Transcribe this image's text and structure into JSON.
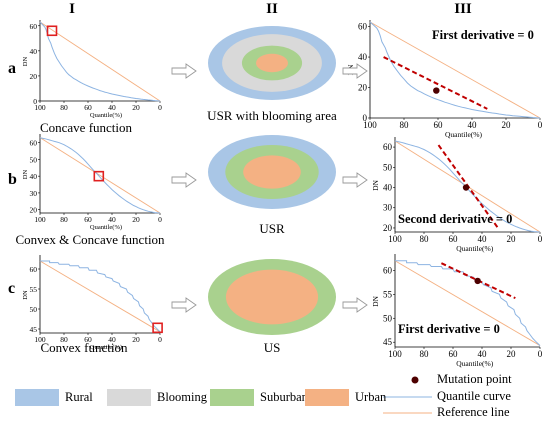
{
  "columns": [
    "I",
    "II",
    "III"
  ],
  "rows": [
    {
      "label": "a",
      "left_caption": "Concave function",
      "middle_caption": "USR with blooming area",
      "annotation": "First derivative = 0",
      "y_ticks": [
        "60",
        "40",
        "20",
        "0"
      ],
      "x_ticks": [
        "100",
        "80",
        "60",
        "40",
        "20",
        "0"
      ],
      "ylim": [
        0,
        63
      ],
      "rings": [
        "rural",
        "blooming",
        "suburban",
        "urban"
      ],
      "quantile_curve": [
        [
          100,
          63
        ],
        [
          98,
          61
        ],
        [
          96,
          59
        ],
        [
          95,
          57
        ],
        [
          94,
          54
        ],
        [
          93,
          50
        ],
        [
          91,
          46
        ],
        [
          90,
          43
        ],
        [
          88,
          38
        ],
        [
          86,
          34
        ],
        [
          84,
          31
        ],
        [
          82,
          28
        ],
        [
          80,
          25.5
        ],
        [
          78,
          23
        ],
        [
          76,
          21
        ],
        [
          74,
          19.5
        ],
        [
          72,
          18
        ],
        [
          70,
          17
        ],
        [
          68,
          15.8
        ],
        [
          66,
          14.7
        ],
        [
          64,
          13.7
        ],
        [
          62,
          12.8
        ],
        [
          60,
          12
        ],
        [
          58,
          11.2
        ],
        [
          56,
          10.4
        ],
        [
          54,
          9.7
        ],
        [
          52,
          9
        ],
        [
          50,
          8.3
        ],
        [
          48,
          7.7
        ],
        [
          46,
          7.1
        ],
        [
          44,
          6.6
        ],
        [
          42,
          6.1
        ],
        [
          40,
          5.6
        ],
        [
          38,
          5.2
        ],
        [
          36,
          4.8
        ],
        [
          34,
          4.4
        ],
        [
          32,
          4
        ],
        [
          30,
          3.6
        ],
        [
          28,
          3.3
        ],
        [
          26,
          3
        ],
        [
          24,
          2.6
        ],
        [
          22,
          2.3
        ],
        [
          20,
          2
        ],
        [
          18,
          1.8
        ],
        [
          16,
          1.5
        ],
        [
          14,
          1.3
        ],
        [
          12,
          1.1
        ],
        [
          10,
          0.9
        ],
        [
          8,
          0.7
        ],
        [
          6,
          0.5
        ],
        [
          4,
          0.35
        ],
        [
          2,
          0.2
        ],
        [
          0,
          0
        ]
      ],
      "reference_line": [
        [
          100,
          63
        ],
        [
          0,
          0
        ]
      ],
      "mutation_point_left": [
        90,
        56
      ],
      "mutation_point_right": [
        61,
        18
      ],
      "tangent": [
        [
          92,
          40
        ],
        [
          31,
          6
        ]
      ]
    },
    {
      "label": "b",
      "left_caption": "Convex & Concave function",
      "middle_caption": "USR",
      "annotation": "Second derivative = 0",
      "y_ticks": [
        "60",
        "50",
        "40",
        "30",
        "20"
      ],
      "x_ticks": [
        "100",
        "80",
        "60",
        "40",
        "20",
        "0"
      ],
      "ylim": [
        18,
        64
      ],
      "rings": [
        "rural",
        "suburban",
        "urban"
      ],
      "quantile_curve": [
        [
          100,
          63
        ],
        [
          98,
          62.7
        ],
        [
          96,
          62.4
        ],
        [
          94,
          62
        ],
        [
          92,
          61.6
        ],
        [
          90,
          61.2
        ],
        [
          88,
          60.8
        ],
        [
          86,
          60.4
        ],
        [
          84,
          60
        ],
        [
          82,
          59.4
        ],
        [
          80,
          58.8
        ],
        [
          78,
          58
        ],
        [
          76,
          57.2
        ],
        [
          74,
          56.3
        ],
        [
          72,
          55.3
        ],
        [
          70,
          54.2
        ],
        [
          68,
          53
        ],
        [
          66,
          51.7
        ],
        [
          64,
          50.3
        ],
        [
          62,
          48.8
        ],
        [
          60,
          47.2
        ],
        [
          58,
          45.6
        ],
        [
          56,
          44
        ],
        [
          54,
          42.4
        ],
        [
          52,
          41
        ],
        [
          50,
          39.4
        ],
        [
          48,
          37.8
        ],
        [
          46,
          36.3
        ],
        [
          44,
          34.8
        ],
        [
          42,
          33.4
        ],
        [
          40,
          32
        ],
        [
          38,
          30.7
        ],
        [
          36,
          29.5
        ],
        [
          34,
          28.3
        ],
        [
          32,
          27.2
        ],
        [
          30,
          26.1
        ],
        [
          28,
          25.1
        ],
        [
          26,
          24.2
        ],
        [
          24,
          23.3
        ],
        [
          22,
          22.5
        ],
        [
          20,
          21.8
        ],
        [
          18,
          21.1
        ],
        [
          16,
          20.5
        ],
        [
          14,
          20
        ],
        [
          12,
          19.5
        ],
        [
          10,
          19.1
        ],
        [
          8,
          18.7
        ],
        [
          6,
          18.4
        ],
        [
          4,
          18.2
        ],
        [
          2,
          18.1
        ],
        [
          0,
          18
        ]
      ],
      "reference_line": [
        [
          100,
          63
        ],
        [
          0,
          18
        ]
      ],
      "mutation_point_left": [
        51,
        40
      ],
      "mutation_point_right": [
        51,
        40
      ],
      "tangent": [
        [
          70,
          61
        ],
        [
          29,
          20
        ]
      ]
    },
    {
      "label": "c",
      "left_caption": "Convex function",
      "middle_caption": "US",
      "annotation": "First derivative = 0",
      "y_ticks": [
        "60",
        "55",
        "50",
        "45"
      ],
      "x_ticks": [
        "100",
        "80",
        "60",
        "40",
        "20",
        "0"
      ],
      "ylim": [
        44,
        63
      ],
      "rings": [
        "suburban",
        "urban"
      ],
      "quantile_curve": [
        [
          100,
          62
        ],
        [
          92,
          62
        ],
        [
          92,
          61.6
        ],
        [
          85,
          61.6
        ],
        [
          84,
          61.2
        ],
        [
          76,
          61.2
        ],
        [
          75,
          60.8
        ],
        [
          68,
          60.8
        ],
        [
          67,
          60.3
        ],
        [
          60,
          60.3
        ],
        [
          59,
          59.7
        ],
        [
          53,
          59.7
        ],
        [
          52,
          59
        ],
        [
          46,
          58.6
        ],
        [
          45,
          58
        ],
        [
          40,
          57.6
        ],
        [
          39,
          57
        ],
        [
          34,
          56.4
        ],
        [
          33,
          55.6
        ],
        [
          28,
          55
        ],
        [
          27,
          54.2
        ],
        [
          23,
          53.4
        ],
        [
          22,
          52.6
        ],
        [
          18,
          51.8
        ],
        [
          17,
          50.8
        ],
        [
          14,
          50
        ],
        [
          13,
          49
        ],
        [
          10,
          48.2
        ],
        [
          9,
          47.4
        ],
        [
          7,
          46.6
        ],
        [
          5,
          45.8
        ],
        [
          3,
          45.2
        ],
        [
          1,
          44.6
        ],
        [
          0,
          44.3
        ]
      ],
      "reference_line": [
        [
          100,
          62
        ],
        [
          0,
          44.3
        ]
      ],
      "mutation_point_left": [
        2,
        45.3
      ],
      "mutation_point_right": [
        43,
        57.8
      ],
      "tangent": [
        [
          68,
          61.5
        ],
        [
          17,
          54.2
        ]
      ]
    }
  ],
  "axis_labels": {
    "y": "DN",
    "x": "Quantile(%)"
  },
  "legend": {
    "areas": [
      {
        "key": "rural",
        "label": "Rural",
        "color": "#a9c6e6"
      },
      {
        "key": "blooming",
        "label": "Blooming area",
        "color": "#d9d9d9"
      },
      {
        "key": "suburban",
        "label": "Suburban",
        "color": "#a9d18e"
      },
      {
        "key": "urban",
        "label": "Urban",
        "color": "#f4b183"
      }
    ],
    "mutation_point": "Mutation point",
    "quantile_curve": "Quantile curve",
    "reference_line": "Reference line"
  },
  "colors": {
    "quantile_curve": "#8db4e2",
    "reference_line": "#f4b183",
    "tangent": "#c00000",
    "marker_square": "#e02020",
    "mutation_point": "#4d0000",
    "axis": "#000000",
    "arrow": "#999999"
  }
}
